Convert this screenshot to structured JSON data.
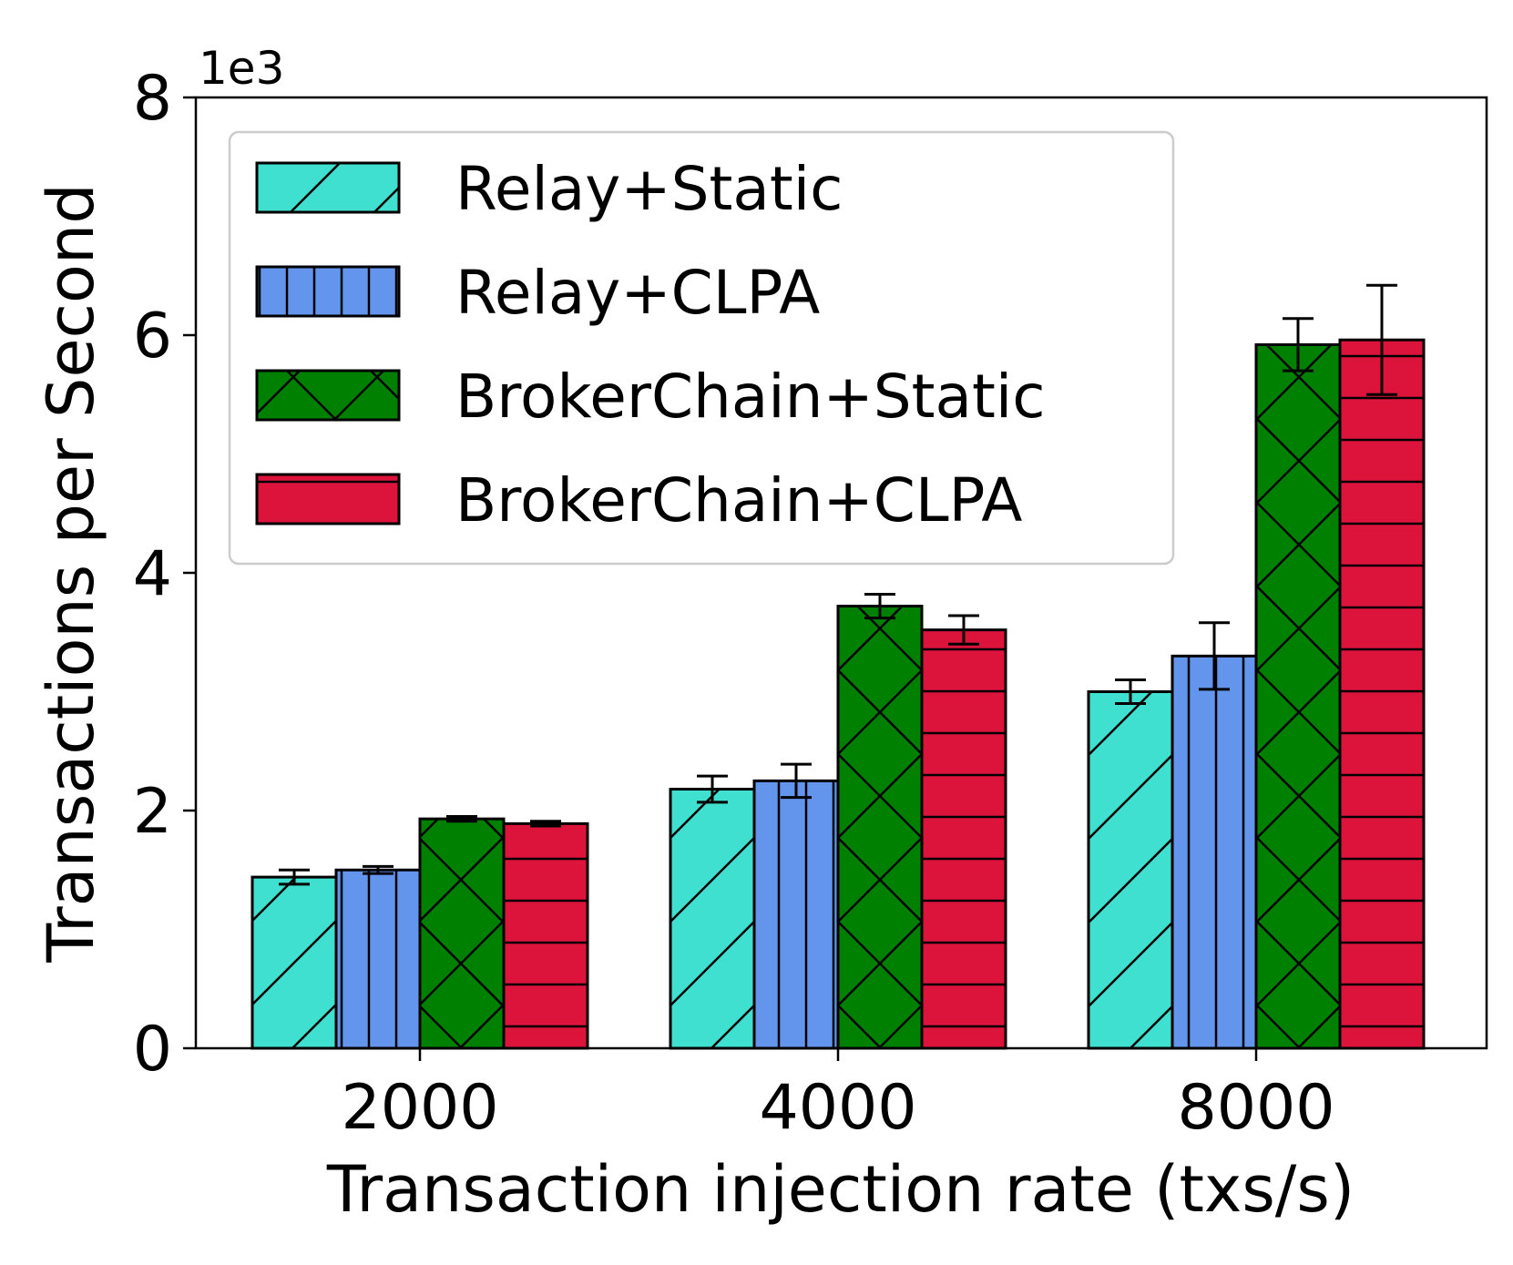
{
  "chart_data": {
    "type": "bar",
    "title": "",
    "xlabel": "Transaction injection rate (txs/s)",
    "ylabel": "Transactions per Second",
    "y_scale_label": "1e3",
    "ylim": [
      0,
      8000
    ],
    "yticks": [
      0,
      2000,
      4000,
      6000,
      8000
    ],
    "ytick_labels": [
      "0",
      "2",
      "4",
      "6",
      "8"
    ],
    "categories": [
      "2000",
      "4000",
      "8000"
    ],
    "grid": false,
    "legend_position": "upper-left",
    "series": [
      {
        "name": "Relay+Static",
        "color": "#40E0D0",
        "hatch": "forward-diagonal",
        "values": [
          1440,
          2180,
          3000
        ],
        "errors": [
          60,
          110,
          100
        ]
      },
      {
        "name": "Relay+CLPA",
        "color": "#6495ED",
        "hatch": "vertical",
        "values": [
          1500,
          2250,
          3300
        ],
        "errors": [
          30,
          140,
          280
        ]
      },
      {
        "name": "BrokerChain+Static",
        "color": "#008000",
        "hatch": "cross-diagonal",
        "values": [
          1930,
          3720,
          5920
        ],
        "errors": [
          20,
          100,
          220
        ]
      },
      {
        "name": "BrokerChain+CLPA",
        "color": "#DC143C",
        "hatch": "horizontal",
        "values": [
          1890,
          3520,
          5960
        ],
        "errors": [
          20,
          120,
          460
        ]
      }
    ]
  }
}
